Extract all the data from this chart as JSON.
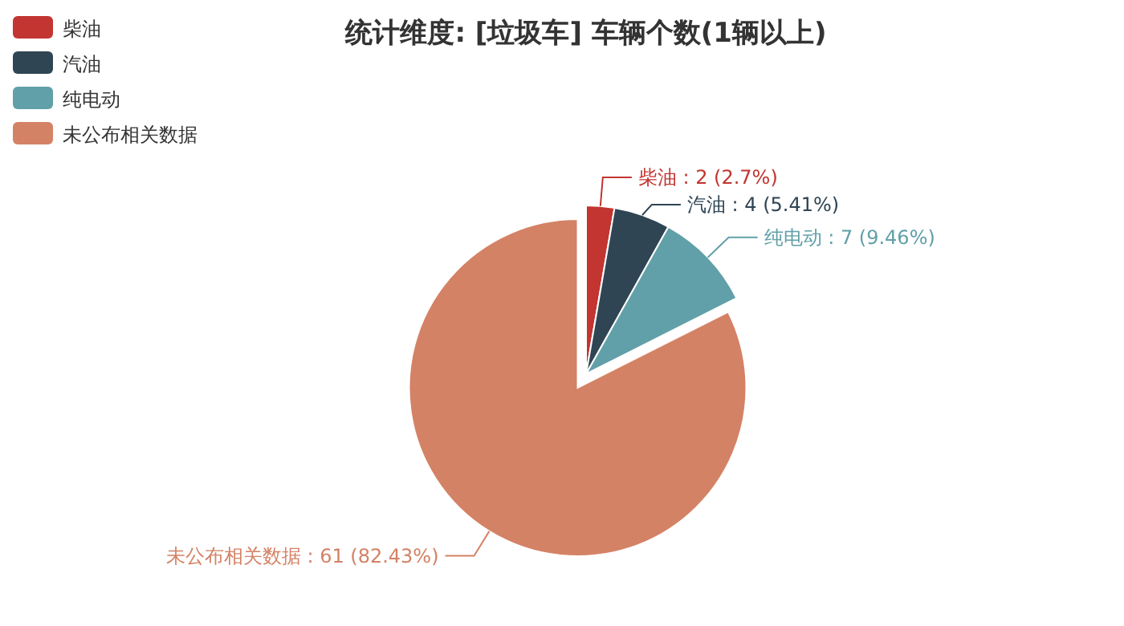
{
  "chart_data": {
    "type": "pie",
    "title": "统计维度: [垃圾车] 车辆个数(1辆以上)",
    "categories": [
      "柴油",
      "汽油",
      "纯电动",
      "未公布相关数据"
    ],
    "values": [
      2,
      4,
      7,
      61
    ],
    "colors": [
      "#c23531",
      "#2f4554",
      "#61a0a8",
      "#d48265"
    ],
    "value_labels": [
      "柴油 : 2 (2.7%)",
      "汽油 : 4 (5.41%)",
      "纯电动 : 7 (9.46%)",
      "未公布相关数据 : 61 (82.43%)"
    ],
    "legend": "top left"
  }
}
